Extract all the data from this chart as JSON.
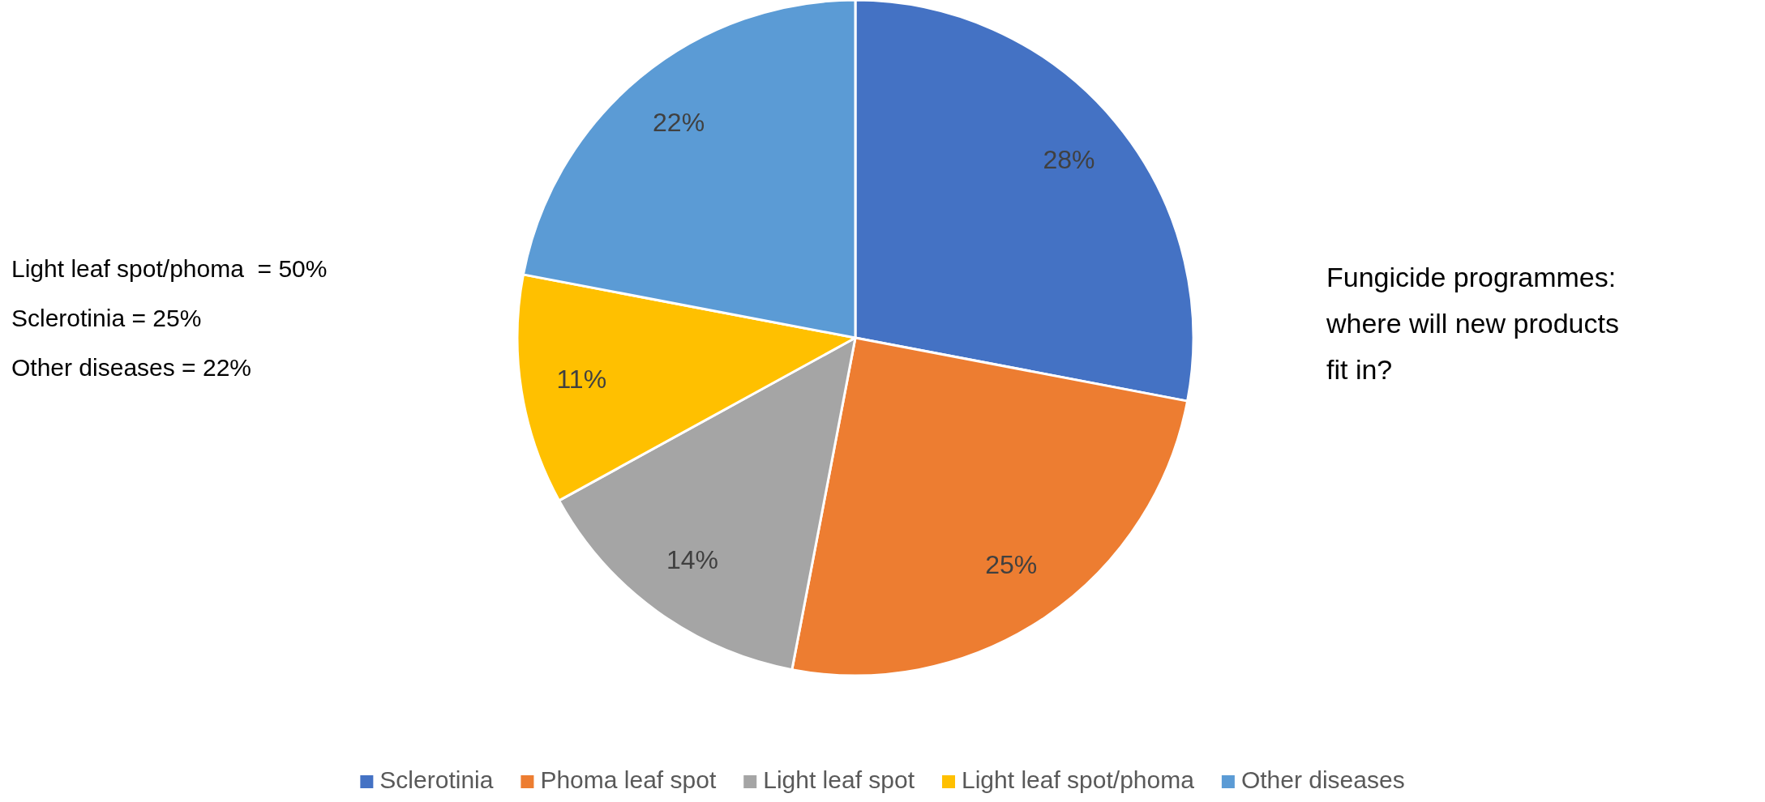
{
  "chart_data": {
    "type": "pie",
    "title": "Fungicide programmes: where will new products fit in?",
    "categories": [
      "Sclerotinia",
      "Phoma leaf spot",
      "Light leaf spot",
      "Light leaf spot/phoma",
      "Other diseases"
    ],
    "values": [
      28,
      25,
      14,
      11,
      22
    ],
    "colors": [
      "#4472c4",
      "#ed7d31",
      "#a5a5a5",
      "#ffc000",
      "#5b9bd5"
    ],
    "value_labels": [
      "28%",
      "25%",
      "14%",
      "11%",
      "22%"
    ],
    "legend": "bottom",
    "annotations": [
      "Light leaf spot/phoma  = 50%",
      "Sclerotinia = 25%",
      "Other diseases = 22%"
    ]
  }
}
